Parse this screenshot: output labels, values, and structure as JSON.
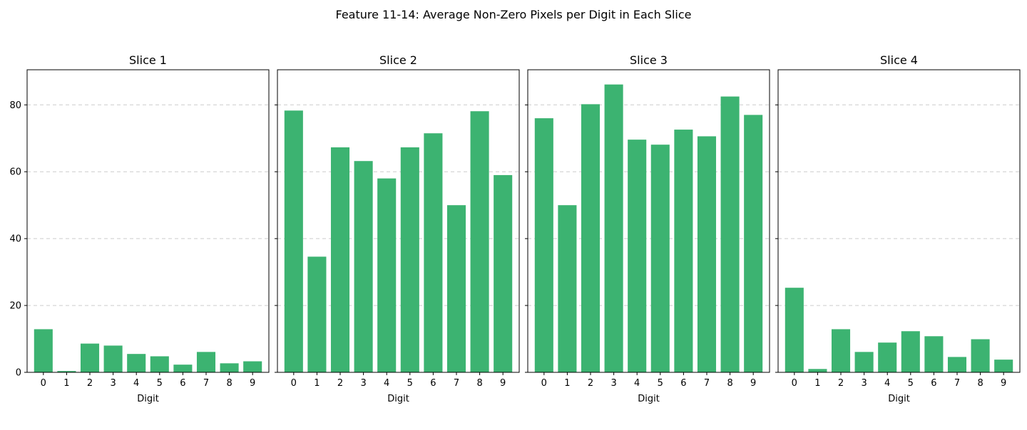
{
  "chart_data": {
    "type": "bar",
    "title": "Feature 11-14: Average Non-Zero Pixels per Digit in Each Slice",
    "bar_color": "#3cb371",
    "grid_color": "#cccccc",
    "shared_y": true,
    "ylim": [
      0,
      90.5
    ],
    "yticks": [
      0,
      20,
      40,
      60,
      80
    ],
    "ylabel": "",
    "grid_y": true,
    "categories": [
      "0",
      "1",
      "2",
      "3",
      "4",
      "5",
      "6",
      "7",
      "8",
      "9"
    ],
    "panels": [
      {
        "title": "Slice 1",
        "xlabel": "Digit",
        "values": [
          12.9,
          0.4,
          8.6,
          8.0,
          5.5,
          4.8,
          2.3,
          6.1,
          2.7,
          3.3
        ]
      },
      {
        "title": "Slice 2",
        "xlabel": "Digit",
        "values": [
          78.3,
          34.6,
          67.3,
          63.2,
          58.0,
          67.3,
          71.5,
          50.0,
          78.1,
          59.0
        ]
      },
      {
        "title": "Slice 3",
        "xlabel": "Digit",
        "values": [
          76.0,
          50.0,
          80.2,
          86.1,
          69.6,
          68.1,
          72.6,
          70.6,
          82.5,
          77.0
        ]
      },
      {
        "title": "Slice 4",
        "xlabel": "Digit",
        "values": [
          25.3,
          1.0,
          12.9,
          6.1,
          8.9,
          12.3,
          10.8,
          4.6,
          9.9,
          3.8
        ]
      }
    ]
  }
}
